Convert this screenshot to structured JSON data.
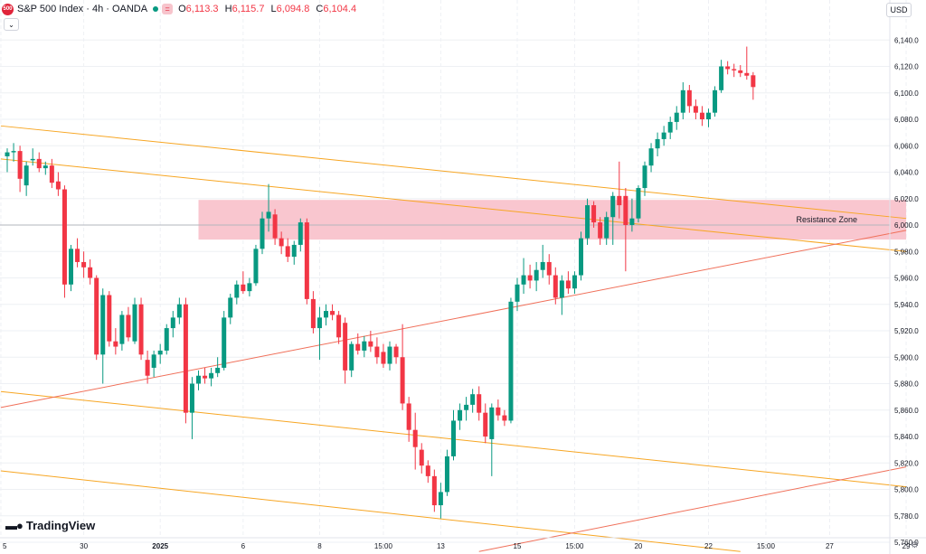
{
  "header": {
    "badge": "500",
    "title": "S&P 500 Index · 4h · OANDA",
    "o_label": "O",
    "o_value": "6,113.3",
    "h_label": "H",
    "h_value": "6,115.7",
    "l_label": "L",
    "l_value": "6,094.8",
    "c_label": "C",
    "c_value": "6,104.4",
    "collapse_icon": "chevron-down-icon",
    "currency": "USD"
  },
  "brand": {
    "name": "TradingView",
    "icon": "tradingview-logo-icon"
  },
  "settings_icon": "gear-icon",
  "colors": {
    "up": "#089981",
    "down": "#f23645",
    "zone_fill": "#f9c6cf",
    "channel": "#f7a623",
    "trend": "#f0705a",
    "grid": "#eef0f4"
  },
  "chart_data": {
    "type": "candlestick",
    "title": "",
    "ylim": [
      5755,
      6155
    ],
    "y_ticks": [
      5760,
      5780,
      5800,
      5820,
      5840,
      5860,
      5880,
      5900,
      5920,
      5940,
      5960,
      5980,
      6000,
      6020,
      6040,
      6060,
      6080,
      6100,
      6120,
      6140
    ],
    "y_tick_labels": [
      "5,760.0",
      "5,780.0",
      "5,800.0",
      "5,820.0",
      "5,840.0",
      "5,860.0",
      "5,880.0",
      "5,900.0",
      "5,920.0",
      "5,940.0",
      "5,960.0",
      "5,980.0",
      "6,000.0",
      "6,020.0",
      "6,040.0",
      "6,060.0",
      "6,080.0",
      "6,100.0",
      "6,120.0",
      "6,140.0"
    ],
    "x_tick_labels": [
      "5",
      "30",
      "2025",
      "6",
      "8",
      "15:00",
      "13",
      "15",
      "15:00",
      "20",
      "22",
      "15:00",
      "27",
      "29"
    ],
    "x_tick_bars": [
      -1,
      12,
      24,
      37,
      49,
      59,
      68,
      80,
      89,
      99,
      110,
      119,
      129,
      141
    ],
    "grid": true,
    "annotations": [
      {
        "type": "zone",
        "label": "Resistance Zone",
        "y_from": 5989,
        "y_to": 6019,
        "bar_from": 30,
        "bar_to": 141
      }
    ],
    "lines": [
      {
        "name": "",
        "kind": "channel",
        "points": [
          [
            -1,
            6075
          ],
          [
            141,
            6005
          ]
        ]
      },
      {
        "name": "",
        "kind": "channel",
        "points": [
          [
            -1,
            6050
          ],
          [
            141,
            5980
          ]
        ]
      },
      {
        "name": "",
        "kind": "channel",
        "points": [
          [
            -1,
            5874
          ],
          [
            141,
            5802
          ]
        ]
      },
      {
        "name": "",
        "kind": "channel",
        "points": [
          [
            -1,
            5814
          ],
          [
            115,
            5753
          ]
        ]
      },
      {
        "name": "",
        "kind": "trend",
        "points": [
          [
            -1,
            5862
          ],
          [
            141,
            5996
          ]
        ]
      },
      {
        "name": "",
        "kind": "trend",
        "points": [
          [
            74,
            5753
          ],
          [
            141,
            5817
          ]
        ]
      }
    ],
    "candles": [
      {
        "x": 0,
        "o": 6052,
        "h": 6058,
        "l": 6040,
        "c": 6055
      },
      {
        "x": 1,
        "o": 6055,
        "h": 6062,
        "l": 6048,
        "c": 6056
      },
      {
        "x": 2,
        "o": 6056,
        "h": 6060,
        "l": 6025,
        "c": 6035
      },
      {
        "x": 3,
        "o": 6030,
        "h": 6048,
        "l": 6022,
        "c": 6045
      },
      {
        "x": 4,
        "o": 6049,
        "h": 6058,
        "l": 6045,
        "c": 6050
      },
      {
        "x": 5,
        "o": 6050,
        "h": 6055,
        "l": 6040,
        "c": 6043
      },
      {
        "x": 6,
        "o": 6043,
        "h": 6048,
        "l": 6038,
        "c": 6045
      },
      {
        "x": 7,
        "o": 6045,
        "h": 6050,
        "l": 6028,
        "c": 6032
      },
      {
        "x": 8,
        "o": 6033,
        "h": 6040,
        "l": 6022,
        "c": 6027
      },
      {
        "x": 9,
        "o": 6027,
        "h": 6030,
        "l": 5945,
        "c": 5955
      },
      {
        "x": 10,
        "o": 5955,
        "h": 5985,
        "l": 5950,
        "c": 5982
      },
      {
        "x": 11,
        "o": 5982,
        "h": 5990,
        "l": 5968,
        "c": 5972
      },
      {
        "x": 12,
        "o": 5972,
        "h": 5980,
        "l": 5960,
        "c": 5968
      },
      {
        "x": 13,
        "o": 5968,
        "h": 5974,
        "l": 5955,
        "c": 5960
      },
      {
        "x": 14,
        "o": 5960,
        "h": 5962,
        "l": 5898,
        "c": 5902
      },
      {
        "x": 15,
        "o": 5902,
        "h": 5952,
        "l": 5880,
        "c": 5947
      },
      {
        "x": 16,
        "o": 5947,
        "h": 5950,
        "l": 5908,
        "c": 5912
      },
      {
        "x": 17,
        "o": 5912,
        "h": 5922,
        "l": 5902,
        "c": 5908
      },
      {
        "x": 18,
        "o": 5910,
        "h": 5935,
        "l": 5905,
        "c": 5932
      },
      {
        "x": 19,
        "o": 5932,
        "h": 5938,
        "l": 5912,
        "c": 5915
      },
      {
        "x": 20,
        "o": 5912,
        "h": 5945,
        "l": 5910,
        "c": 5940
      },
      {
        "x": 21,
        "o": 5940,
        "h": 5945,
        "l": 5898,
        "c": 5902
      },
      {
        "x": 22,
        "o": 5898,
        "h": 5905,
        "l": 5880,
        "c": 5886
      },
      {
        "x": 23,
        "o": 5892,
        "h": 5905,
        "l": 5885,
        "c": 5902
      },
      {
        "x": 24,
        "o": 5902,
        "h": 5910,
        "l": 5895,
        "c": 5905
      },
      {
        "x": 25,
        "o": 5905,
        "h": 5925,
        "l": 5902,
        "c": 5922
      },
      {
        "x": 26,
        "o": 5922,
        "h": 5935,
        "l": 5915,
        "c": 5930
      },
      {
        "x": 27,
        "o": 5930,
        "h": 5945,
        "l": 5925,
        "c": 5940
      },
      {
        "x": 28,
        "o": 5940,
        "h": 5945,
        "l": 5850,
        "c": 5858
      },
      {
        "x": 29,
        "o": 5858,
        "h": 5885,
        "l": 5838,
        "c": 5880
      },
      {
        "x": 30,
        "o": 5880,
        "h": 5890,
        "l": 5875,
        "c": 5886
      },
      {
        "x": 31,
        "o": 5886,
        "h": 5892,
        "l": 5880,
        "c": 5884
      },
      {
        "x": 32,
        "o": 5884,
        "h": 5892,
        "l": 5878,
        "c": 5888
      },
      {
        "x": 33,
        "o": 5888,
        "h": 5900,
        "l": 5885,
        "c": 5892
      },
      {
        "x": 34,
        "o": 5892,
        "h": 5935,
        "l": 5890,
        "c": 5930
      },
      {
        "x": 35,
        "o": 5930,
        "h": 5948,
        "l": 5925,
        "c": 5945
      },
      {
        "x": 36,
        "o": 5945,
        "h": 5958,
        "l": 5940,
        "c": 5955
      },
      {
        "x": 37,
        "o": 5955,
        "h": 5965,
        "l": 5948,
        "c": 5950
      },
      {
        "x": 38,
        "o": 5950,
        "h": 5960,
        "l": 5946,
        "c": 5956
      },
      {
        "x": 39,
        "o": 5956,
        "h": 5985,
        "l": 5954,
        "c": 5982
      },
      {
        "x": 40,
        "o": 5982,
        "h": 6010,
        "l": 5978,
        "c": 6005
      },
      {
        "x": 41,
        "o": 6005,
        "h": 6031,
        "l": 5995,
        "c": 6010
      },
      {
        "x": 42,
        "o": 6008,
        "h": 6012,
        "l": 5985,
        "c": 5990
      },
      {
        "x": 43,
        "o": 5990,
        "h": 5995,
        "l": 5978,
        "c": 5984
      },
      {
        "x": 44,
        "o": 5984,
        "h": 5990,
        "l": 5972,
        "c": 5976
      },
      {
        "x": 45,
        "o": 5976,
        "h": 5988,
        "l": 5970,
        "c": 5985
      },
      {
        "x": 46,
        "o": 5985,
        "h": 6005,
        "l": 5980,
        "c": 6002
      },
      {
        "x": 47,
        "o": 6002,
        "h": 6005,
        "l": 5940,
        "c": 5944
      },
      {
        "x": 48,
        "o": 5944,
        "h": 5950,
        "l": 5918,
        "c": 5922
      },
      {
        "x": 49,
        "o": 5922,
        "h": 5938,
        "l": 5898,
        "c": 5930
      },
      {
        "x": 50,
        "o": 5930,
        "h": 5940,
        "l": 5924,
        "c": 5935
      },
      {
        "x": 51,
        "o": 5935,
        "h": 5940,
        "l": 5928,
        "c": 5932
      },
      {
        "x": 52,
        "o": 5932,
        "h": 5935,
        "l": 5910,
        "c": 5915
      },
      {
        "x": 53,
        "o": 5926,
        "h": 5930,
        "l": 5880,
        "c": 5890
      },
      {
        "x": 54,
        "o": 5890,
        "h": 5912,
        "l": 5885,
        "c": 5910
      },
      {
        "x": 55,
        "o": 5910,
        "h": 5918,
        "l": 5902,
        "c": 5905
      },
      {
        "x": 56,
        "o": 5905,
        "h": 5916,
        "l": 5900,
        "c": 5912
      },
      {
        "x": 57,
        "o": 5912,
        "h": 5920,
        "l": 5904,
        "c": 5908
      },
      {
        "x": 58,
        "o": 5908,
        "h": 5915,
        "l": 5895,
        "c": 5900
      },
      {
        "x": 59,
        "o": 5904,
        "h": 5910,
        "l": 5892,
        "c": 5895
      },
      {
        "x": 60,
        "o": 5895,
        "h": 5912,
        "l": 5890,
        "c": 5908
      },
      {
        "x": 61,
        "o": 5908,
        "h": 5910,
        "l": 5895,
        "c": 5900
      },
      {
        "x": 62,
        "o": 5900,
        "h": 5925,
        "l": 5860,
        "c": 5865
      },
      {
        "x": 63,
        "o": 5865,
        "h": 5870,
        "l": 5836,
        "c": 5845
      },
      {
        "x": 64,
        "o": 5845,
        "h": 5858,
        "l": 5815,
        "c": 5832
      },
      {
        "x": 65,
        "o": 5830,
        "h": 5835,
        "l": 5812,
        "c": 5818
      },
      {
        "x": 66,
        "o": 5818,
        "h": 5822,
        "l": 5805,
        "c": 5810
      },
      {
        "x": 67,
        "o": 5810,
        "h": 5815,
        "l": 5783,
        "c": 5788
      },
      {
        "x": 68,
        "o": 5788,
        "h": 5805,
        "l": 5778,
        "c": 5798
      },
      {
        "x": 69,
        "o": 5798,
        "h": 5830,
        "l": 5795,
        "c": 5825
      },
      {
        "x": 70,
        "o": 5825,
        "h": 5860,
        "l": 5822,
        "c": 5852
      },
      {
        "x": 71,
        "o": 5852,
        "h": 5865,
        "l": 5845,
        "c": 5860
      },
      {
        "x": 72,
        "o": 5860,
        "h": 5870,
        "l": 5852,
        "c": 5864
      },
      {
        "x": 73,
        "o": 5864,
        "h": 5876,
        "l": 5858,
        "c": 5872
      },
      {
        "x": 74,
        "o": 5872,
        "h": 5878,
        "l": 5852,
        "c": 5858
      },
      {
        "x": 75,
        "o": 5858,
        "h": 5865,
        "l": 5835,
        "c": 5840
      },
      {
        "x": 76,
        "o": 5838,
        "h": 5865,
        "l": 5810,
        "c": 5862
      },
      {
        "x": 77,
        "o": 5862,
        "h": 5868,
        "l": 5852,
        "c": 5856
      },
      {
        "x": 78,
        "o": 5856,
        "h": 5860,
        "l": 5848,
        "c": 5852
      },
      {
        "x": 79,
        "o": 5852,
        "h": 5945,
        "l": 5850,
        "c": 5942
      },
      {
        "x": 80,
        "o": 5942,
        "h": 5960,
        "l": 5935,
        "c": 5955
      },
      {
        "x": 81,
        "o": 5955,
        "h": 5975,
        "l": 5948,
        "c": 5962
      },
      {
        "x": 82,
        "o": 5962,
        "h": 5970,
        "l": 5952,
        "c": 5958
      },
      {
        "x": 83,
        "o": 5958,
        "h": 5972,
        "l": 5950,
        "c": 5966
      },
      {
        "x": 84,
        "o": 5966,
        "h": 5985,
        "l": 5960,
        "c": 5972
      },
      {
        "x": 85,
        "o": 5972,
        "h": 5978,
        "l": 5955,
        "c": 5962
      },
      {
        "x": 86,
        "o": 5962,
        "h": 5968,
        "l": 5940,
        "c": 5945
      },
      {
        "x": 87,
        "o": 5945,
        "h": 5962,
        "l": 5932,
        "c": 5958
      },
      {
        "x": 88,
        "o": 5958,
        "h": 5965,
        "l": 5948,
        "c": 5952
      },
      {
        "x": 89,
        "o": 5952,
        "h": 5965,
        "l": 5948,
        "c": 5962
      },
      {
        "x": 90,
        "o": 5962,
        "h": 5995,
        "l": 5958,
        "c": 5990
      },
      {
        "x": 91,
        "o": 5990,
        "h": 6020,
        "l": 5985,
        "c": 6015
      },
      {
        "x": 92,
        "o": 6015,
        "h": 6018,
        "l": 5998,
        "c": 6002
      },
      {
        "x": 93,
        "o": 6002,
        "h": 6006,
        "l": 5985,
        "c": 5990
      },
      {
        "x": 94,
        "o": 5990,
        "h": 6010,
        "l": 5985,
        "c": 6006
      },
      {
        "x": 95,
        "o": 6006,
        "h": 6025,
        "l": 5985,
        "c": 6022
      },
      {
        "x": 96,
        "o": 6022,
        "h": 6048,
        "l": 6005,
        "c": 6015
      },
      {
        "x": 97,
        "o": 6022,
        "h": 6028,
        "l": 5965,
        "c": 6000
      },
      {
        "x": 98,
        "o": 6000,
        "h": 6020,
        "l": 5995,
        "c": 6005
      },
      {
        "x": 99,
        "o": 6005,
        "h": 6030,
        "l": 6002,
        "c": 6028
      },
      {
        "x": 100,
        "o": 6028,
        "h": 6048,
        "l": 6022,
        "c": 6045
      },
      {
        "x": 101,
        "o": 6045,
        "h": 6062,
        "l": 6040,
        "c": 6058
      },
      {
        "x": 102,
        "o": 6058,
        "h": 6070,
        "l": 6052,
        "c": 6065
      },
      {
        "x": 103,
        "o": 6065,
        "h": 6075,
        "l": 6060,
        "c": 6070
      },
      {
        "x": 104,
        "o": 6070,
        "h": 6082,
        "l": 6065,
        "c": 6078
      },
      {
        "x": 105,
        "o": 6078,
        "h": 6090,
        "l": 6072,
        "c": 6085
      },
      {
        "x": 106,
        "o": 6085,
        "h": 6108,
        "l": 6080,
        "c": 6102
      },
      {
        "x": 107,
        "o": 6102,
        "h": 6106,
        "l": 6085,
        "c": 6090
      },
      {
        "x": 108,
        "o": 6090,
        "h": 6095,
        "l": 6080,
        "c": 6085
      },
      {
        "x": 109,
        "o": 6085,
        "h": 6090,
        "l": 6075,
        "c": 6080
      },
      {
        "x": 110,
        "o": 6080,
        "h": 6088,
        "l": 6074,
        "c": 6085
      },
      {
        "x": 111,
        "o": 6085,
        "h": 6105,
        "l": 6082,
        "c": 6102
      },
      {
        "x": 112,
        "o": 6102,
        "h": 6125,
        "l": 6100,
        "c": 6120
      },
      {
        "x": 113,
        "o": 6120,
        "h": 6124,
        "l": 6114,
        "c": 6118
      },
      {
        "x": 114,
        "o": 6118,
        "h": 6122,
        "l": 6112,
        "c": 6117
      },
      {
        "x": 115,
        "o": 6117,
        "h": 6121,
        "l": 6112,
        "c": 6115
      },
      {
        "x": 116,
        "o": 6115,
        "h": 6135,
        "l": 6110,
        "c": 6113
      },
      {
        "x": 117,
        "o": 6113.3,
        "h": 6115.7,
        "l": 6094.8,
        "c": 6104.4
      }
    ]
  }
}
